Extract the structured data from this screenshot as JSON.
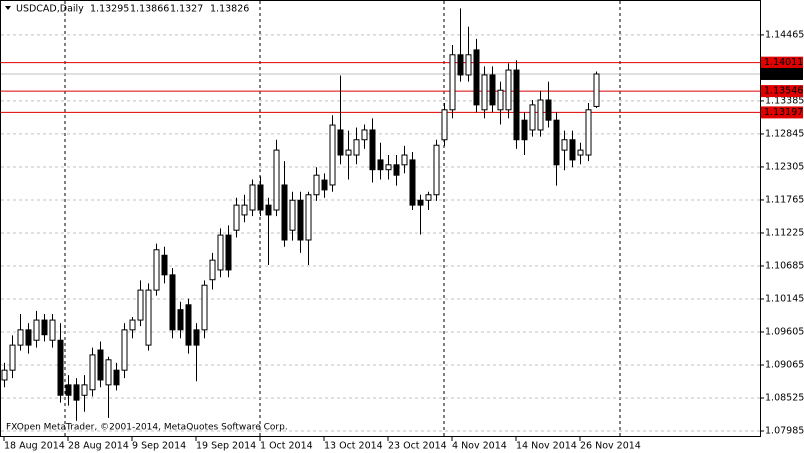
{
  "chart_data": {
    "type": "candlestick",
    "title": "USDCAD,Daily",
    "header_values": [
      1.13295,
      1.13866,
      1.1327,
      1.13826
    ],
    "footer": "FXOpen MetaTrader, ©2001-2014, MetaQuotes Software Corp.",
    "categories": [
      "18 Aug 2014",
      null,
      null,
      null,
      null,
      null,
      null,
      null,
      "28 Aug 2014",
      null,
      null,
      null,
      null,
      null,
      null,
      null,
      "9 Sep 2014",
      null,
      null,
      null,
      null,
      null,
      null,
      null,
      "19 Sep 2014",
      null,
      null,
      null,
      null,
      null,
      null,
      null,
      "1 Oct 2014",
      null,
      null,
      null,
      null,
      null,
      null,
      null,
      "13 Oct 2014",
      null,
      null,
      null,
      null,
      null,
      null,
      null,
      "23 Oct 2014",
      null,
      null,
      null,
      null,
      null,
      null,
      null,
      "4 Nov 2014",
      null,
      null,
      null,
      null,
      null,
      null,
      null,
      "14 Nov 2014",
      null,
      null,
      null,
      null,
      null,
      null,
      null,
      "26 Nov 2014",
      null,
      null
    ],
    "open": [
      1.0882,
      1.0898,
      1.0939,
      1.0964,
      1.0947,
      1.098,
      1.0947,
      1.0947,
      1.0874,
      1.0874,
      1.0857,
      1.0866,
      1.0931,
      1.0874,
      1.0898,
      1.0898,
      1.0964,
      1.098,
      1.0939,
      1.1029,
      1.1086,
      1.1054,
      1.0997,
      1.1005,
      1.0964,
      1.0964,
      1.1046,
      1.1062,
      1.1119,
      1.1127,
      1.1152,
      1.116,
      1.1201,
      1.1168,
      1.116,
      1.1201,
      1.1127,
      1.1176,
      1.1111,
      1.1185,
      1.1209,
      1.1201,
      1.1291,
      1.125,
      1.125,
      1.1275,
      1.1291,
      1.1242,
      1.1226,
      1.1234,
      1.1234,
      1.1242,
      1.1176,
      1.1176,
      1.1185,
      1.1275,
      1.1324,
      1.1414,
      1.1381,
      1.1422,
      1.1324,
      1.1381,
      1.1324,
      1.1324,
      1.1389,
      1.1307,
      1.1291,
      1.1291,
      1.134,
      1.1307,
      1.1258,
      1.1275,
      1.125,
      1.125,
      1.13295
    ],
    "high": [
      1.091,
      1.0955,
      1.099,
      1.0975,
      1.0995,
      1.099,
      1.099,
      1.0975,
      1.089,
      1.0885,
      1.089,
      1.0935,
      1.0945,
      1.092,
      1.091,
      1.0975,
      1.0985,
      1.1045,
      1.104,
      1.1105,
      1.11,
      1.1065,
      1.101,
      1.1015,
      1.0975,
      1.1045,
      1.109,
      1.113,
      1.1135,
      1.118,
      1.1185,
      1.121,
      1.1215,
      1.118,
      1.1275,
      1.124,
      1.119,
      1.119,
      1.119,
      1.123,
      1.122,
      1.1315,
      1.138,
      1.129,
      1.1295,
      1.13,
      1.131,
      1.127,
      1.125,
      1.125,
      1.1265,
      1.1255,
      1.1185,
      1.119,
      1.1275,
      1.1335,
      1.143,
      1.149,
      1.146,
      1.144,
      1.1395,
      1.1395,
      1.137,
      1.14,
      1.1405,
      1.132,
      1.134,
      1.1355,
      1.137,
      1.132,
      1.129,
      1.129,
      1.127,
      1.1335,
      1.13866
    ],
    "low": [
      1.087,
      1.0885,
      1.093,
      1.0925,
      1.0935,
      1.0945,
      1.0935,
      1.0845,
      1.084,
      1.0815,
      1.083,
      1.0855,
      1.087,
      1.082,
      1.0865,
      1.0885,
      1.095,
      1.097,
      1.093,
      1.102,
      1.104,
      1.095,
      1.095,
      1.0925,
      1.088,
      1.095,
      1.103,
      1.105,
      1.105,
      1.1115,
      1.114,
      1.115,
      1.115,
      1.107,
      1.115,
      1.11,
      1.111,
      1.109,
      1.107,
      1.1175,
      1.118,
      1.119,
      1.1235,
      1.121,
      1.1235,
      1.126,
      1.1205,
      1.121,
      1.121,
      1.12,
      1.122,
      1.116,
      1.112,
      1.116,
      1.1175,
      1.1265,
      1.131,
      1.137,
      1.137,
      1.132,
      1.131,
      1.132,
      1.13,
      1.131,
      1.126,
      1.125,
      1.128,
      1.128,
      1.1295,
      1.12,
      1.1225,
      1.123,
      1.1235,
      1.124,
      1.1327
    ],
    "close": [
      1.0898,
      1.0939,
      1.0964,
      1.0939,
      1.098,
      1.0956,
      1.098,
      1.0857,
      1.0857,
      1.0849,
      1.0874,
      1.0923,
      1.0882,
      1.0915,
      1.0874,
      1.0964,
      1.098,
      1.1029,
      1.1029,
      1.1095,
      1.1054,
      1.0964,
      1.0964,
      1.0939,
      1.0939,
      1.1037,
      1.1078,
      1.1119,
      1.1062,
      1.1168,
      1.1168,
      1.1201,
      1.116,
      1.1152,
      1.1258,
      1.1111,
      1.1176,
      1.1111,
      1.1185,
      1.1217,
      1.1193,
      1.1299,
      1.125,
      1.1258,
      1.1275,
      1.1291,
      1.1226,
      1.1226,
      1.1234,
      1.1217,
      1.125,
      1.1168,
      1.1168,
      1.1185,
      1.1266,
      1.1324,
      1.1414,
      1.1381,
      1.1414,
      1.1332,
      1.1381,
      1.1332,
      1.1356,
      1.1389,
      1.1275,
      1.1275,
      1.1332,
      1.134,
      1.1307,
      1.1234,
      1.1275,
      1.1242,
      1.1258,
      1.1324,
      1.13826
    ],
    "ylim": [
      1.07887,
      1.15036
    ],
    "yticks": [
      1.14465,
      1.13385,
      1.12845,
      1.12305,
      1.11765,
      1.11225,
      1.10685,
      1.10145,
      1.09605,
      1.09065,
      1.08525,
      1.07985
    ],
    "levels": [
      {
        "value": 1.14011,
        "color": "#e00000",
        "box": "#e00000"
      },
      {
        "value": 1.13826,
        "color": "#c0c0c0",
        "box": "#000000"
      },
      {
        "value": 1.13546,
        "color": "#e00000",
        "box": "#e00000"
      },
      {
        "value": 1.13197,
        "color": "#e00000",
        "box": "#e00000"
      }
    ],
    "grid": true
  }
}
